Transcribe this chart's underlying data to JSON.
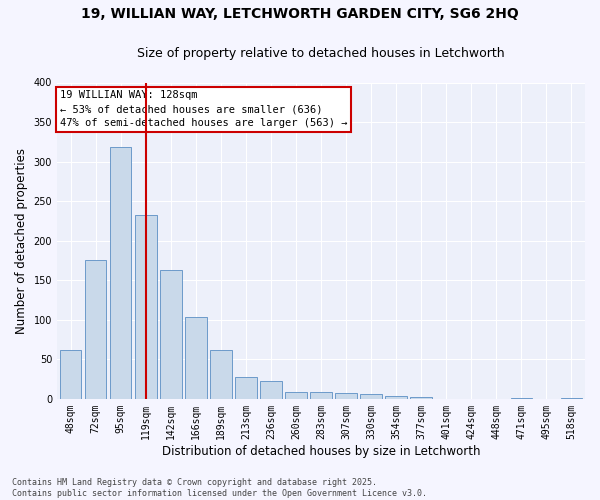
{
  "title_line1": "19, WILLIAN WAY, LETCHWORTH GARDEN CITY, SG6 2HQ",
  "title_line2": "Size of property relative to detached houses in Letchworth",
  "xlabel": "Distribution of detached houses by size in Letchworth",
  "ylabel": "Number of detached properties",
  "categories": [
    "48sqm",
    "72sqm",
    "95sqm",
    "119sqm",
    "142sqm",
    "166sqm",
    "189sqm",
    "213sqm",
    "236sqm",
    "260sqm",
    "283sqm",
    "307sqm",
    "330sqm",
    "354sqm",
    "377sqm",
    "401sqm",
    "424sqm",
    "448sqm",
    "471sqm",
    "495sqm",
    "518sqm"
  ],
  "values": [
    62,
    175,
    318,
    232,
    163,
    104,
    62,
    27,
    23,
    9,
    9,
    7,
    6,
    4,
    2,
    0,
    0,
    0,
    1,
    0,
    1
  ],
  "bar_color": "#c9d9ea",
  "bar_edge_color": "#5b8ec4",
  "vline_x_index": 3,
  "vline_color": "#cc0000",
  "annotation_text": "19 WILLIAN WAY: 128sqm\n← 53% of detached houses are smaller (636)\n47% of semi-detached houses are larger (563) →",
  "annotation_box_color": "#ffffff",
  "annotation_box_edge": "#cc0000",
  "footer_line1": "Contains HM Land Registry data © Crown copyright and database right 2025.",
  "footer_line2": "Contains public sector information licensed under the Open Government Licence v3.0.",
  "ylim": [
    0,
    400
  ],
  "yticks": [
    0,
    50,
    100,
    150,
    200,
    250,
    300,
    350,
    400
  ],
  "bg_color": "#edf0fa",
  "grid_color": "#ffffff",
  "fig_bg_color": "#f5f5ff",
  "title_fontsize": 10,
  "subtitle_fontsize": 9,
  "tick_fontsize": 7,
  "label_fontsize": 8.5,
  "annotation_fontsize": 7.5,
  "footer_fontsize": 6
}
